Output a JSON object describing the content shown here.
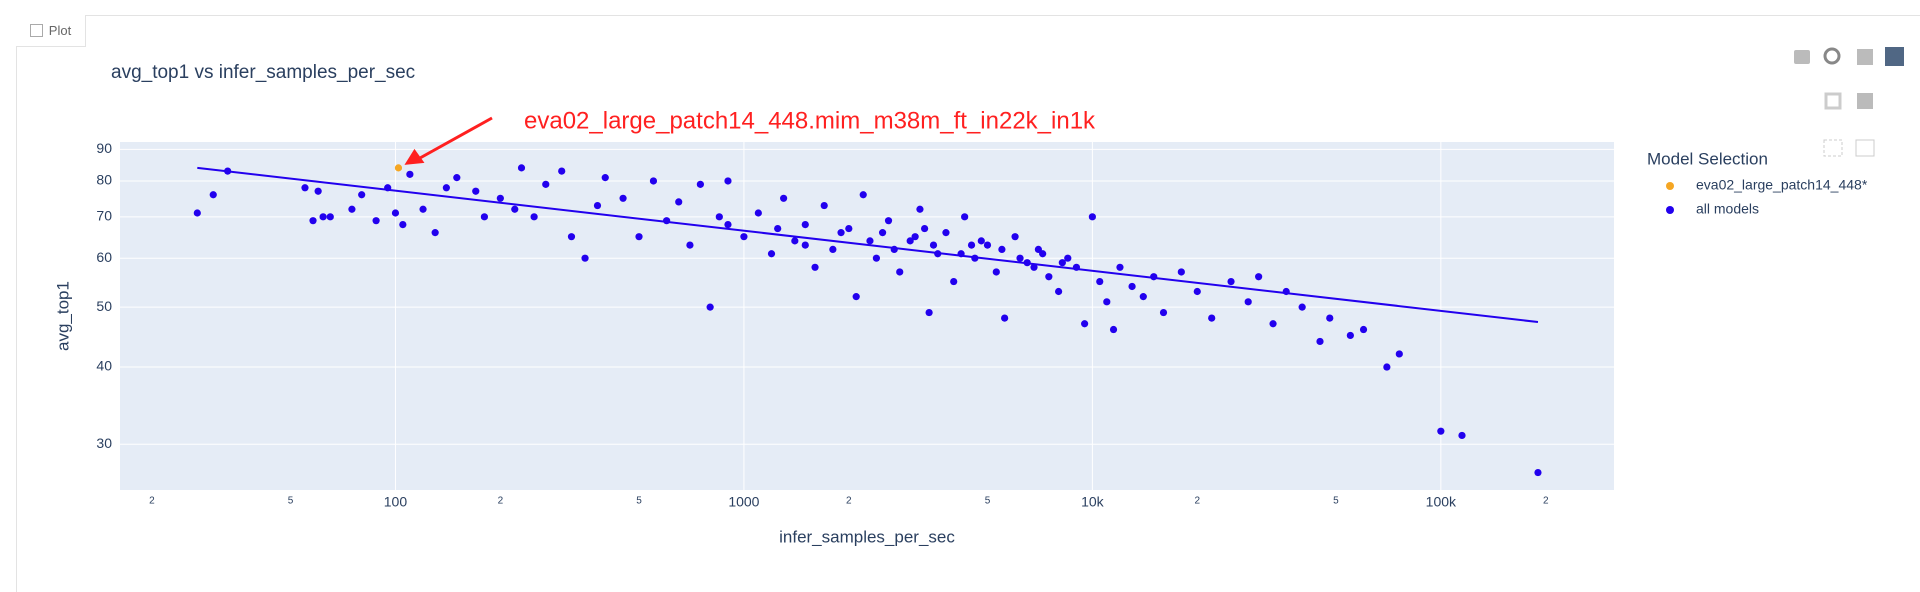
{
  "tab": "Plot",
  "chart_data": {
    "type": "scatter",
    "title": "avg_top1 vs infer_samples_per_sec",
    "x_label": "infer_samples_per_sec",
    "y_label": "avg_top1",
    "annotation": "eva02_large_patch14_448.mim_m38m_ft_in22k_in1k",
    "legend_title": "Model Selection",
    "xlog": true,
    "ylog": true,
    "grid": true,
    "xlim": [
      16.2,
      314000
    ],
    "ylim": [
      25.3,
      92.5
    ],
    "xticks": [
      100,
      1000,
      {
        "value": 10000,
        "label": "10k"
      },
      {
        "value": 100000,
        "label": "100k"
      }
    ],
    "xminorticks": [
      {
        "value": 20,
        "label": "2"
      },
      {
        "value": 50,
        "label": "5"
      },
      {
        "value": 200,
        "label": "2"
      },
      {
        "value": 500,
        "label": "5"
      },
      {
        "value": 2000,
        "label": "2"
      },
      {
        "value": 5000,
        "label": "5"
      },
      {
        "value": 20000,
        "label": "2"
      },
      {
        "value": 50000,
        "label": "5"
      },
      {
        "value": 200000,
        "label": "2"
      }
    ],
    "yticks": [
      30,
      40,
      50,
      60,
      70,
      80,
      90
    ],
    "series": [
      {
        "name": "eva02_large_patch14_448*",
        "color": "#f5a623",
        "x": [
          102
        ],
        "values": [
          84
        ]
      },
      {
        "name": "all models",
        "color": "#2200ee",
        "x": [
          27,
          30,
          33,
          55,
          58,
          60,
          62,
          65,
          75,
          80,
          88,
          95,
          100,
          105,
          110,
          120,
          130,
          140,
          150,
          170,
          180,
          200,
          220,
          230,
          250,
          270,
          300,
          320,
          350,
          380,
          400,
          450,
          500,
          550,
          600,
          650,
          700,
          750,
          800,
          850,
          900,
          1000,
          1100,
          1200,
          1300,
          1400,
          1500,
          1600,
          1700,
          1800,
          2000,
          2100,
          2200,
          2400,
          2600,
          2800,
          3000,
          3200,
          3400,
          3600,
          3800,
          4000,
          4300,
          4600,
          5000,
          5300,
          5600,
          6000,
          6500,
          7000,
          7500,
          8000,
          8500,
          9000,
          9500,
          10000,
          10500,
          11000,
          11500,
          12000,
          13000,
          14000,
          15000,
          16000,
          18000,
          20000,
          22000,
          25000,
          28000,
          30000,
          33000,
          36000,
          40000,
          45000,
          48000,
          55000,
          60000,
          70000,
          76000,
          100000,
          115000,
          190000,
          1500,
          1900,
          2300,
          2700,
          3100,
          3500,
          4200,
          4800,
          5500,
          6200,
          7200,
          8200,
          2500,
          3300,
          4500,
          6800,
          900,
          1250
        ],
        "values": [
          71,
          76,
          83,
          78,
          69,
          77,
          70,
          70,
          72,
          76,
          69,
          78,
          71,
          68,
          82,
          72,
          66,
          78,
          81,
          77,
          70,
          75,
          72,
          84,
          70,
          79,
          83,
          65,
          60,
          73,
          81,
          75,
          65,
          80,
          69,
          74,
          63,
          79,
          50,
          70,
          80,
          65,
          71,
          61,
          75,
          64,
          68,
          58,
          73,
          62,
          67,
          52,
          76,
          60,
          69,
          57,
          64,
          72,
          49,
          61,
          66,
          55,
          70,
          60,
          63,
          57,
          48,
          65,
          59,
          62,
          56,
          53,
          60,
          58,
          47,
          70,
          55,
          51,
          46,
          58,
          54,
          52,
          56,
          49,
          57,
          53,
          48,
          55,
          51,
          56,
          47,
          53,
          50,
          44,
          48,
          45,
          46,
          40,
          42,
          31.5,
          31,
          27,
          63,
          66,
          64,
          62,
          65,
          63,
          61,
          64,
          62,
          60,
          61,
          59,
          66,
          67,
          63,
          58,
          68,
          67
        ]
      }
    ],
    "trendline": {
      "color": "#2200ee",
      "x": [
        27,
        190000
      ],
      "values": [
        84,
        47.3
      ]
    }
  }
}
